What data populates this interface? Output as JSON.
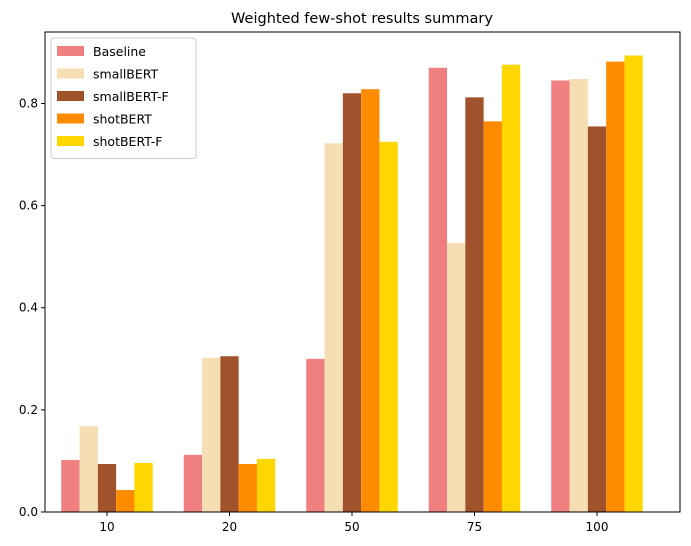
{
  "chart_data": {
    "type": "bar",
    "title": "Weighted few-shot results summary",
    "xlabel": "",
    "ylabel": "",
    "categories": [
      "10",
      "20",
      "50",
      "75",
      "100"
    ],
    "ylim": [
      0,
      0.94
    ],
    "yticks": [
      "0.0",
      "0.2",
      "0.4",
      "0.6",
      "0.8"
    ],
    "ytick_values": [
      0.0,
      0.2,
      0.4,
      0.6,
      0.8
    ],
    "grid": false,
    "legend_position": "top-left",
    "series": [
      {
        "name": "Baseline",
        "color": "#f08080",
        "values": [
          0.102,
          0.112,
          0.3,
          0.87,
          0.845
        ]
      },
      {
        "name": "smallBERT",
        "color": "#f5deb3",
        "values": [
          0.168,
          0.302,
          0.722,
          0.527,
          0.848
        ]
      },
      {
        "name": "smallBERT-F",
        "color": "#a0522d",
        "values": [
          0.094,
          0.305,
          0.82,
          0.812,
          0.755
        ]
      },
      {
        "name": "shotBERT",
        "color": "#ff8c00",
        "values": [
          0.043,
          0.094,
          0.828,
          0.765,
          0.882
        ]
      },
      {
        "name": "shotBERT-F",
        "color": "#ffd700",
        "values": [
          0.096,
          0.104,
          0.725,
          0.876,
          0.894
        ]
      }
    ]
  }
}
